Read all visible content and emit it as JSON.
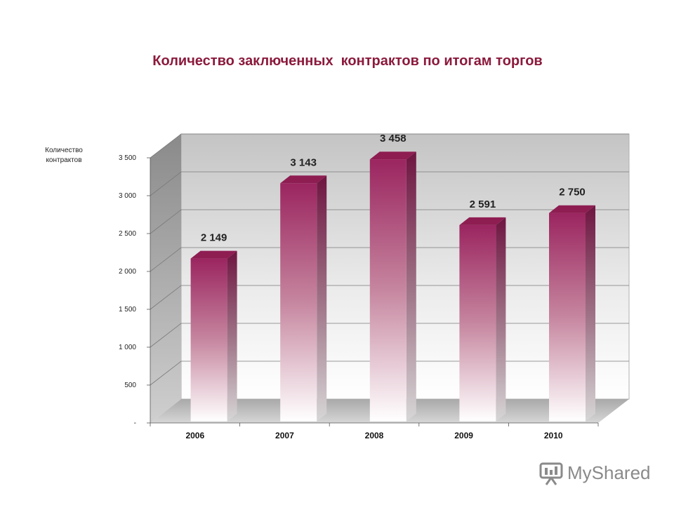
{
  "chart_data": {
    "type": "bar",
    "title": "Количество заключенных  контрактов по итогам торгов",
    "ylabel": "Количество контрактов",
    "categories": [
      "2006",
      "2007",
      "2008",
      "2009",
      "2010"
    ],
    "values": [
      2149,
      3143,
      3458,
      2591,
      2750
    ],
    "data_labels": [
      "2 149",
      "3 143",
      "3 458",
      "2 591",
      "2 750"
    ],
    "yticks": [
      {
        "value": 0,
        "label": "-"
      },
      {
        "value": 500,
        "label": "500"
      },
      {
        "value": 1000,
        "label": "1 000"
      },
      {
        "value": 1500,
        "label": "1 500"
      },
      {
        "value": 2000,
        "label": "2 000"
      },
      {
        "value": 2500,
        "label": "2 500"
      },
      {
        "value": 3000,
        "label": "3 000"
      },
      {
        "value": 3500,
        "label": "3 500"
      }
    ],
    "ylim": [
      0,
      3500
    ],
    "grid": true,
    "style": "3d-column",
    "bar_color": "#9b2560"
  },
  "watermark": {
    "text": "MyShared"
  }
}
